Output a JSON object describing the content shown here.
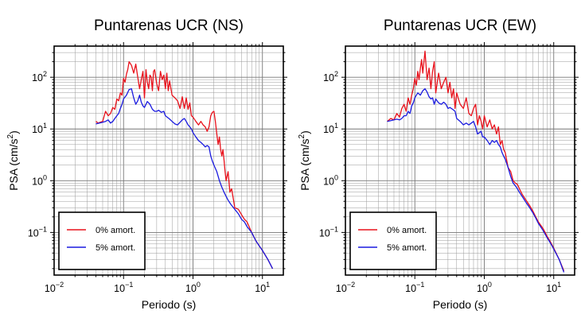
{
  "chart_data": [
    {
      "type": "line",
      "title": "Puntarenas UCR (NS)",
      "xlabel": "Periodo (s)",
      "ylabel_main": "PSA (cm/s",
      "ylabel_sup": "2",
      "ylabel_tail": ")",
      "xscale": "log",
      "yscale": "log",
      "xlim": [
        0.01,
        20
      ],
      "ylim": [
        0.015,
        400
      ],
      "grid": true,
      "legend_position": "bottom-left",
      "x_tick_labels": [
        {
          "base": "10",
          "exp": "−2",
          "value": 0.01
        },
        {
          "base": "10",
          "exp": "−1",
          "value": 0.1
        },
        {
          "base": "10",
          "exp": "0",
          "value": 1
        },
        {
          "base": "10",
          "exp": "1",
          "value": 10
        }
      ],
      "y_tick_labels": [
        {
          "base": "10",
          "exp": "−1",
          "value": 0.1
        },
        {
          "base": "10",
          "exp": "0",
          "value": 1
        },
        {
          "base": "10",
          "exp": "1",
          "value": 10
        },
        {
          "base": "10",
          "exp": "2",
          "value": 100
        }
      ],
      "series": [
        {
          "name": "0% amort.",
          "color": "#e8111b",
          "x": [
            0.04,
            0.043,
            0.046,
            0.05,
            0.055,
            0.06,
            0.065,
            0.07,
            0.075,
            0.08,
            0.085,
            0.09,
            0.095,
            0.1,
            0.105,
            0.11,
            0.115,
            0.12,
            0.13,
            0.14,
            0.15,
            0.16,
            0.17,
            0.18,
            0.19,
            0.2,
            0.21,
            0.22,
            0.23,
            0.24,
            0.25,
            0.26,
            0.27,
            0.28,
            0.3,
            0.32,
            0.34,
            0.36,
            0.38,
            0.4,
            0.42,
            0.44,
            0.46,
            0.5,
            0.55,
            0.6,
            0.65,
            0.7,
            0.75,
            0.8,
            0.85,
            0.9,
            0.95,
            1.0,
            1.1,
            1.2,
            1.3,
            1.4,
            1.5,
            1.6,
            1.7,
            1.8,
            1.9,
            2.0,
            2.1,
            2.2,
            2.3,
            2.4,
            2.5,
            2.6,
            2.7,
            2.8,
            2.9,
            3.0,
            3.2,
            3.4,
            3.6,
            3.8,
            4.0,
            4.5,
            5.0,
            5.5,
            6.0,
            7.0,
            8.0,
            9.0,
            10.0,
            12.0,
            14.0
          ],
          "y": [
            14,
            13,
            13.5,
            14,
            22,
            18,
            20,
            26,
            24,
            38,
            35,
            50,
            45,
            95,
            80,
            115,
            140,
            200,
            170,
            120,
            180,
            100,
            60,
            90,
            130,
            40,
            140,
            80,
            60,
            110,
            100,
            55,
            130,
            140,
            75,
            55,
            130,
            90,
            110,
            60,
            120,
            55,
            85,
            45,
            40,
            35,
            25,
            42,
            25,
            40,
            24,
            32,
            18,
            17,
            14,
            12,
            14,
            12,
            11,
            9,
            11,
            18,
            21,
            22,
            14,
            8,
            5,
            7,
            4,
            3,
            4,
            2.5,
            1.5,
            1.0,
            1.5,
            0.6,
            0.7,
            0.45,
            0.3,
            0.28,
            0.22,
            0.18,
            0.16,
            0.1,
            0.07,
            0.055,
            0.045,
            0.03,
            0.02
          ]
        },
        {
          "name": "5% amort.",
          "color": "#1a1adf",
          "x": [
            0.04,
            0.045,
            0.05,
            0.055,
            0.06,
            0.065,
            0.07,
            0.075,
            0.08,
            0.085,
            0.09,
            0.095,
            0.1,
            0.11,
            0.12,
            0.13,
            0.14,
            0.15,
            0.16,
            0.17,
            0.18,
            0.19,
            0.2,
            0.22,
            0.24,
            0.26,
            0.28,
            0.3,
            0.32,
            0.35,
            0.38,
            0.4,
            0.45,
            0.5,
            0.55,
            0.6,
            0.65,
            0.7,
            0.75,
            0.8,
            0.85,
            0.9,
            0.95,
            1.0,
            1.1,
            1.2,
            1.3,
            1.4,
            1.5,
            1.6,
            1.7,
            1.8,
            1.9,
            2.0,
            2.2,
            2.4,
            2.6,
            2.8,
            3.0,
            3.2,
            3.5,
            4.0,
            4.5,
            5.0,
            5.5,
            6.0,
            7.0,
            8.0,
            9.0,
            10.0,
            12.0,
            14.0
          ],
          "y": [
            12.5,
            13,
            13.5,
            14,
            15,
            13,
            14,
            16,
            18,
            20,
            25,
            30,
            38,
            45,
            58,
            60,
            40,
            30,
            35,
            45,
            33,
            28,
            26,
            34,
            30,
            24,
            22,
            22,
            23,
            21,
            22,
            18,
            16,
            14,
            12.5,
            12,
            13.5,
            15,
            16,
            14,
            12,
            11,
            10,
            8.5,
            7,
            6,
            5.5,
            5,
            4.5,
            4.8,
            4.5,
            3,
            2.4,
            2.0,
            1.5,
            1.0,
            0.75,
            0.6,
            0.5,
            0.42,
            0.35,
            0.28,
            0.23,
            0.18,
            0.16,
            0.13,
            0.1,
            0.07,
            0.055,
            0.045,
            0.03,
            0.02
          ]
        }
      ]
    },
    {
      "type": "line",
      "title": "Puntarenas UCR (EW)",
      "xlabel": "Periodo (s)",
      "ylabel_main": "PSA (cm/s",
      "ylabel_sup": "2",
      "ylabel_tail": ")",
      "xscale": "log",
      "yscale": "log",
      "xlim": [
        0.01,
        20
      ],
      "ylim": [
        0.015,
        400
      ],
      "grid": true,
      "legend_position": "bottom-left",
      "x_tick_labels": [
        {
          "base": "10",
          "exp": "−2",
          "value": 0.01
        },
        {
          "base": "10",
          "exp": "−1",
          "value": 0.1
        },
        {
          "base": "10",
          "exp": "0",
          "value": 1
        },
        {
          "base": "10",
          "exp": "1",
          "value": 10
        }
      ],
      "y_tick_labels": [
        {
          "base": "10",
          "exp": "−1",
          "value": 0.1
        },
        {
          "base": "10",
          "exp": "0",
          "value": 1
        },
        {
          "base": "10",
          "exp": "1",
          "value": 10
        },
        {
          "base": "10",
          "exp": "2",
          "value": 100
        }
      ],
      "series": [
        {
          "name": "0% amort.",
          "color": "#e8111b",
          "x": [
            0.04,
            0.045,
            0.05,
            0.055,
            0.06,
            0.065,
            0.07,
            0.075,
            0.08,
            0.085,
            0.09,
            0.095,
            0.1,
            0.105,
            0.11,
            0.115,
            0.12,
            0.125,
            0.13,
            0.14,
            0.15,
            0.16,
            0.17,
            0.18,
            0.19,
            0.2,
            0.22,
            0.24,
            0.26,
            0.28,
            0.3,
            0.32,
            0.34,
            0.36,
            0.38,
            0.4,
            0.42,
            0.45,
            0.5,
            0.55,
            0.6,
            0.65,
            0.7,
            0.75,
            0.8,
            0.85,
            0.9,
            0.95,
            1.0,
            1.1,
            1.2,
            1.3,
            1.4,
            1.5,
            1.6,
            1.7,
            1.8,
            1.9,
            2.0,
            2.2,
            2.4,
            2.6,
            2.8,
            3.0,
            3.2,
            3.5,
            4.0,
            4.5,
            5.0,
            5.5,
            6.0,
            7.0,
            8.0,
            9.0,
            10.0,
            12.0,
            14.0
          ],
          "y": [
            14,
            16,
            15,
            20,
            17,
            25,
            30,
            22,
            40,
            30,
            45,
            60,
            95,
            70,
            130,
            90,
            150,
            220,
            120,
            320,
            90,
            150,
            60,
            130,
            200,
            50,
            120,
            60,
            80,
            100,
            50,
            80,
            40,
            60,
            25,
            50,
            40,
            30,
            25,
            40,
            20,
            18,
            25,
            30,
            12,
            18,
            14,
            10,
            18,
            11,
            15,
            10,
            12,
            8,
            11,
            5,
            6,
            4,
            3.5,
            1.8,
            1.5,
            1.0,
            0.9,
            0.85,
            0.7,
            0.55,
            0.42,
            0.33,
            0.26,
            0.2,
            0.16,
            0.12,
            0.085,
            0.065,
            0.05,
            0.03,
            0.018
          ]
        },
        {
          "name": "5% amort.",
          "color": "#1a1adf",
          "x": [
            0.04,
            0.045,
            0.05,
            0.055,
            0.06,
            0.065,
            0.07,
            0.075,
            0.08,
            0.085,
            0.09,
            0.095,
            0.1,
            0.11,
            0.12,
            0.13,
            0.14,
            0.15,
            0.16,
            0.17,
            0.18,
            0.19,
            0.2,
            0.22,
            0.24,
            0.26,
            0.28,
            0.3,
            0.32,
            0.35,
            0.38,
            0.4,
            0.45,
            0.5,
            0.55,
            0.6,
            0.65,
            0.7,
            0.75,
            0.8,
            0.85,
            0.9,
            0.95,
            1.0,
            1.1,
            1.2,
            1.3,
            1.4,
            1.5,
            1.6,
            1.7,
            1.8,
            1.9,
            2.0,
            2.2,
            2.4,
            2.6,
            2.8,
            3.0,
            3.2,
            3.5,
            4.0,
            4.5,
            5.0,
            5.5,
            6.0,
            7.0,
            8.0,
            9.0,
            10.0,
            12.0,
            14.0
          ],
          "y": [
            14,
            14.5,
            15,
            15.5,
            15,
            16,
            18,
            18,
            22,
            20,
            28,
            32,
            40,
            50,
            45,
            55,
            60,
            52,
            42,
            38,
            40,
            30,
            38,
            32,
            30,
            33,
            30,
            25,
            26,
            24,
            22,
            16,
            14,
            12,
            13,
            12,
            13,
            14,
            11,
            8,
            8.5,
            9,
            7,
            7,
            6,
            5,
            6,
            5.5,
            6,
            5,
            4.5,
            3.5,
            3,
            2.6,
            1.8,
            1.2,
            0.9,
            0.8,
            0.7,
            0.6,
            0.5,
            0.38,
            0.3,
            0.24,
            0.19,
            0.15,
            0.11,
            0.08,
            0.062,
            0.048,
            0.03,
            0.017
          ]
        }
      ]
    }
  ]
}
